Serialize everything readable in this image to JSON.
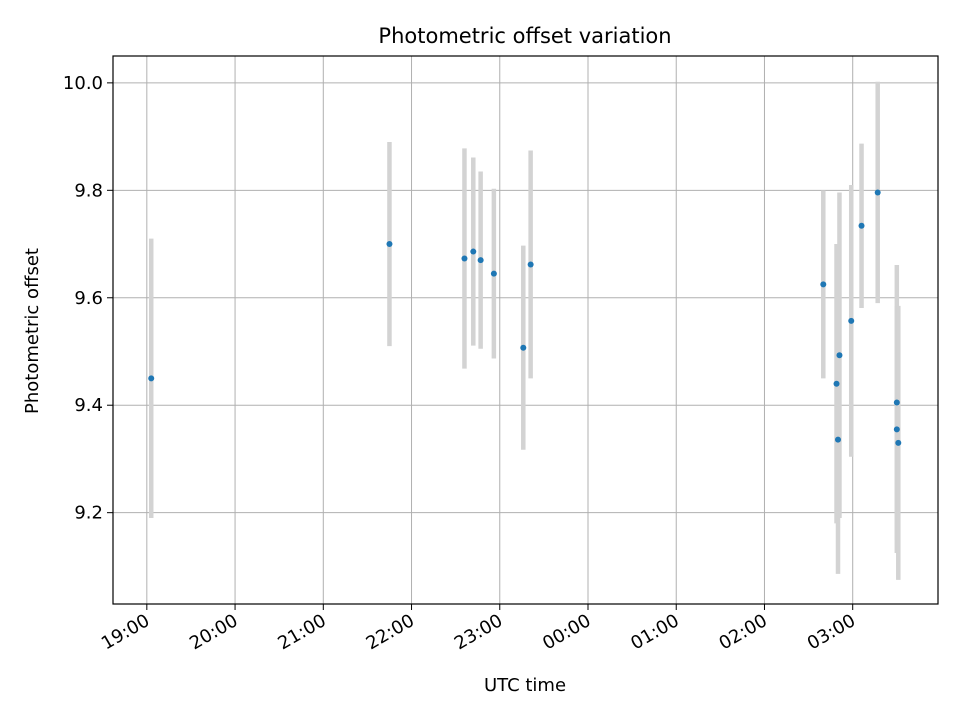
{
  "chart_data": {
    "type": "scatter",
    "title": "Photometric offset variation",
    "xlabel": "UTC time",
    "ylabel": "Photometric offset",
    "x_tick_labels": [
      "19:00",
      "20:00",
      "21:00",
      "22:00",
      "23:00",
      "00:00",
      "01:00",
      "02:00",
      "03:00"
    ],
    "y_tick_labels": [
      "9.2",
      "9.4",
      "9.6",
      "9.8",
      "10.0"
    ],
    "y_ticks": [
      9.2,
      9.4,
      9.6,
      9.8,
      10.0
    ],
    "ylim": [
      9.03,
      10.05
    ],
    "xlim": [
      "18:37",
      "03:58"
    ],
    "grid": true,
    "point_color": "#1f77b4",
    "errorbar_color": "#d3d3d3",
    "points": [
      {
        "time": "19:03",
        "value": 9.45,
        "error": 0.26
      },
      {
        "time": "21:45",
        "value": 9.7,
        "error": 0.19
      },
      {
        "time": "22:36",
        "value": 9.673,
        "error": 0.205
      },
      {
        "time": "22:42",
        "value": 9.686,
        "error": 0.175
      },
      {
        "time": "22:47",
        "value": 9.67,
        "error": 0.165
      },
      {
        "time": "22:56",
        "value": 9.645,
        "error": 0.158
      },
      {
        "time": "23:16",
        "value": 9.507,
        "error": 0.19
      },
      {
        "time": "23:21",
        "value": 9.662,
        "error": 0.212
      },
      {
        "time": "02:40",
        "value": 9.625,
        "error": 0.175
      },
      {
        "time": "02:49",
        "value": 9.44,
        "error": 0.26
      },
      {
        "time": "02:50",
        "value": 9.336,
        "error": 0.25
      },
      {
        "time": "02:51",
        "value": 9.493,
        "error": 0.303
      },
      {
        "time": "02:59",
        "value": 9.557,
        "error": 0.253
      },
      {
        "time": "03:06",
        "value": 9.734,
        "error": 0.153
      },
      {
        "time": "03:17",
        "value": 9.796,
        "error": 0.206
      },
      {
        "time": "03:30",
        "value": 9.405,
        "error": 0.256
      },
      {
        "time": "03:30",
        "value": 9.355,
        "error": 0.23
      },
      {
        "time": "03:31",
        "value": 9.33,
        "error": 0.255
      }
    ]
  }
}
